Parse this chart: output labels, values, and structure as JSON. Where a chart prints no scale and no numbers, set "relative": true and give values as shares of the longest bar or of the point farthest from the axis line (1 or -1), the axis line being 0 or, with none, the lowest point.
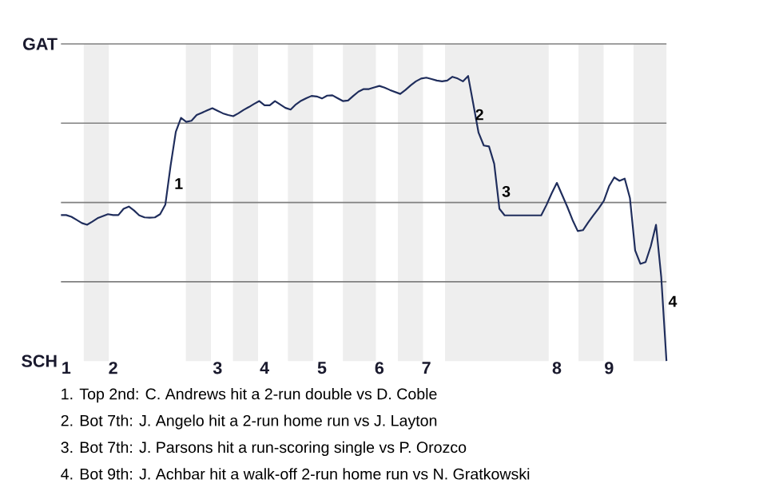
{
  "chart_data": {
    "type": "line",
    "relative": true,
    "categories": [
      null,
      "1",
      null,
      null,
      null,
      null,
      null,
      null,
      null,
      null,
      "2",
      null,
      null,
      null,
      null,
      null,
      null,
      null,
      null,
      null,
      null,
      null,
      null,
      null,
      null,
      null,
      null,
      null,
      null,
      null,
      "3",
      null,
      null,
      null,
      null,
      null,
      null,
      null,
      null,
      "4",
      null,
      null,
      null,
      null,
      null,
      null,
      null,
      null,
      null,
      null,
      "5",
      null,
      null,
      null,
      null,
      null,
      null,
      null,
      null,
      null,
      null,
      "6",
      null,
      null,
      null,
      null,
      null,
      null,
      null,
      null,
      "7",
      null,
      null,
      null,
      null,
      null,
      null,
      null,
      null,
      null,
      null,
      null,
      null,
      null,
      null,
      null,
      null,
      null,
      null,
      null,
      null,
      null,
      null,
      null,
      null,
      "8",
      null,
      null,
      null,
      null,
      null,
      null,
      null,
      null,
      null,
      "9",
      null,
      null,
      null,
      null,
      null,
      null,
      null,
      null,
      null,
      null,
      null
    ],
    "series": [
      {
        "color": "#1f2d5c",
        "values": [
          0.512,
          0.512,
          0.506,
          0.495,
          0.484,
          0.478,
          0.489,
          0.501,
          0.508,
          0.515,
          0.512,
          0.512,
          0.534,
          0.542,
          0.528,
          0.511,
          0.504,
          0.503,
          0.504,
          0.515,
          0.549,
          0.685,
          0.804,
          0.853,
          0.839,
          0.843,
          0.863,
          0.871,
          0.879,
          0.887,
          0.878,
          0.869,
          0.863,
          0.859,
          0.869,
          0.881,
          0.891,
          0.902,
          0.912,
          0.897,
          0.897,
          0.912,
          0.9,
          0.888,
          0.882,
          0.9,
          0.913,
          0.922,
          0.93,
          0.928,
          0.921,
          0.931,
          0.932,
          0.922,
          0.912,
          0.914,
          0.93,
          0.945,
          0.954,
          0.954,
          0.96,
          0.965,
          0.959,
          0.951,
          0.944,
          0.937,
          0.951,
          0.967,
          0.981,
          0.991,
          0.994,
          0.989,
          0.984,
          0.981,
          0.984,
          0.997,
          0.991,
          0.981,
          1,
          0.901,
          0.801,
          0.756,
          0.753,
          0.692,
          0.534,
          0.511,
          0.511,
          0.511,
          0.511,
          0.511,
          0.511,
          0.511,
          0.511,
          0.547,
          0.588,
          0.625,
          0.583,
          0.541,
          0.495,
          0.456,
          0.459,
          0.486,
          0.511,
          0.535,
          0.562,
          0.613,
          0.644,
          0.632,
          0.64,
          0.572,
          0.388,
          0.341,
          0.347,
          0.403,
          0.478,
          0.294,
          0
        ]
      }
    ],
    "grid": "y",
    "marker": "none",
    "line_style": "solid",
    "annotations": [
      "GAT",
      "SCH",
      "1",
      "2",
      "3",
      "4",
      "1. Top 2nd: C. Andrews hit a 2-run double vs D. Coble",
      "2. Bot 7th: J. Angelo hit a 2-run home run vs J. Layton",
      "3. Bot 7th: J. Parsons hit a run-scoring single vs P. Orozco",
      "4. Bot 9th: J. Achbar hit a walk-off 2-run home run vs N. Gratkowski"
    ]
  }
}
